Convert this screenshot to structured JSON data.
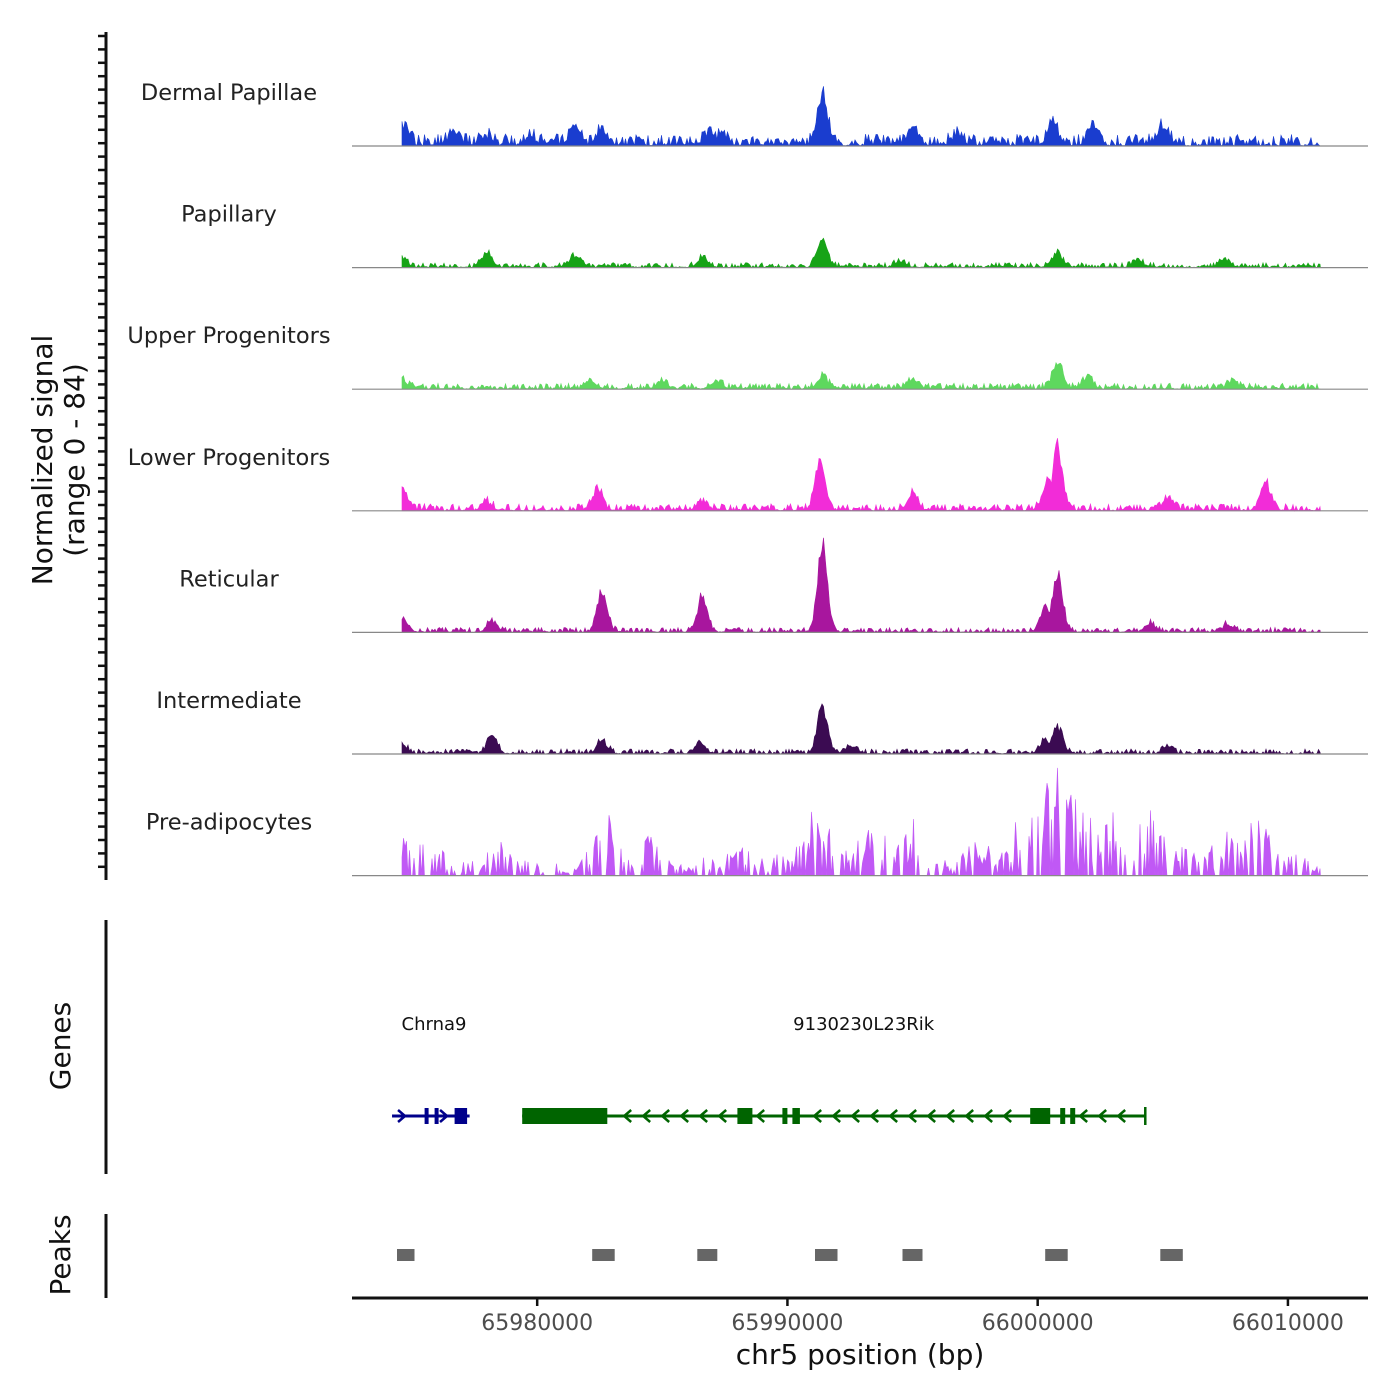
{
  "chart_data": {
    "type": "area",
    "region": "chr5",
    "xlim": [
      65972600,
      66013200
    ],
    "ylim": [
      0,
      84
    ],
    "ylabel_line1": "Normalized signal",
    "ylabel_line2": "(range 0 - 84)",
    "xlabel": "chr5 position (bp)",
    "x_ticks": [
      65980000,
      65990000,
      66000000,
      66010000
    ],
    "x_tick_labels": [
      "65980000",
      "65990000",
      "66000000",
      "66010000"
    ],
    "colors": {
      "axis": "#111111",
      "baseline": "#888888",
      "gene_plus": "#00008b",
      "gene_minus": "#006400",
      "peak": "#666666",
      "tick_label": "#4d4d4d"
    },
    "signal_start": 65974600,
    "signal_end": 66011300,
    "tracks": [
      {
        "name": "Dermal Papillae",
        "color": "#1a3dcf",
        "baseline": 12,
        "peaks": [
          [
            65974700,
            18
          ],
          [
            65976700,
            12
          ],
          [
            65978000,
            8
          ],
          [
            65979700,
            10
          ],
          [
            65981500,
            22
          ],
          [
            65982600,
            15
          ],
          [
            65986800,
            10
          ],
          [
            65987400,
            12
          ],
          [
            65991400,
            54
          ],
          [
            65995000,
            20
          ],
          [
            65996800,
            10
          ],
          [
            66000600,
            25
          ],
          [
            66002200,
            20
          ],
          [
            66005000,
            22
          ]
        ]
      },
      {
        "name": "Papillary",
        "color": "#17a317",
        "baseline": 5,
        "peaks": [
          [
            65974600,
            10
          ],
          [
            65978000,
            14
          ],
          [
            65981500,
            12
          ],
          [
            65986600,
            10
          ],
          [
            65991400,
            30
          ],
          [
            65994500,
            7
          ],
          [
            66000800,
            14
          ],
          [
            66004000,
            9
          ],
          [
            66007500,
            8
          ]
        ]
      },
      {
        "name": "Upper Progenitors",
        "color": "#5ed85e",
        "baseline": 6,
        "peaks": [
          [
            65974600,
            10
          ],
          [
            65982200,
            7
          ],
          [
            65985000,
            9
          ],
          [
            65987200,
            8
          ],
          [
            65991400,
            14
          ],
          [
            65995000,
            9
          ],
          [
            66000800,
            30
          ],
          [
            66002000,
            12
          ],
          [
            66007800,
            8
          ]
        ]
      },
      {
        "name": "Lower Progenitors",
        "color": "#f22cd8",
        "baseline": 7,
        "peaks": [
          [
            65974600,
            24
          ],
          [
            65978000,
            8
          ],
          [
            65982400,
            22
          ],
          [
            65986600,
            10
          ],
          [
            65991300,
            52
          ],
          [
            65995000,
            18
          ],
          [
            66000800,
            68
          ],
          [
            66000400,
            30
          ],
          [
            66005200,
            14
          ],
          [
            66009100,
            30
          ]
        ]
      },
      {
        "name": "Reticular",
        "color": "#a8169e",
        "baseline": 5,
        "peaks": [
          [
            65974600,
            16
          ],
          [
            65978200,
            12
          ],
          [
            65982600,
            46
          ],
          [
            65986600,
            40
          ],
          [
            65991400,
            96
          ],
          [
            66000800,
            66
          ],
          [
            66000300,
            28
          ],
          [
            66004500,
            9
          ],
          [
            66007600,
            8
          ]
        ]
      },
      {
        "name": "Intermediate",
        "color": "#3b0b52",
        "baseline": 5,
        "peaks": [
          [
            65974600,
            10
          ],
          [
            65978200,
            20
          ],
          [
            65982600,
            14
          ],
          [
            65986500,
            12
          ],
          [
            65991400,
            52
          ],
          [
            65992600,
            8
          ],
          [
            66000800,
            30
          ],
          [
            66000300,
            16
          ],
          [
            66005200,
            8
          ]
        ]
      },
      {
        "name": "Pre-adipocytes",
        "color": "#c058f5",
        "baseline": 14,
        "peaks": [
          [
            65974500,
            45
          ],
          [
            65975500,
            35
          ],
          [
            65978800,
            28
          ],
          [
            65982800,
            60
          ],
          [
            65984500,
            40
          ],
          [
            65986800,
            18
          ],
          [
            65988200,
            28
          ],
          [
            65990500,
            22
          ],
          [
            65991400,
            82
          ],
          [
            65993500,
            50
          ],
          [
            65995000,
            46
          ],
          [
            65997500,
            30
          ],
          [
            65999500,
            65
          ],
          [
            66000800,
            112
          ],
          [
            66001600,
            85
          ],
          [
            66003000,
            55
          ],
          [
            66004600,
            55
          ],
          [
            66006200,
            42
          ],
          [
            66007800,
            60
          ],
          [
            66008800,
            58
          ],
          [
            66010200,
            28
          ]
        ]
      }
    ],
    "genes_label": "Genes",
    "genes": [
      {
        "name": "Chrna9",
        "strand": "+",
        "start": 65974200,
        "end": 65977300,
        "exons": [
          [
            65975500,
            65975600
          ],
          [
            65975900,
            65976000
          ],
          [
            65976700,
            65977200
          ]
        ]
      },
      {
        "name": "9130230L23Rik",
        "strand": "-",
        "start": 65979400,
        "end": 66004300,
        "exons": [
          [
            65979400,
            65982800
          ],
          [
            65988000,
            65988600
          ],
          [
            65989800,
            65990000
          ],
          [
            65990200,
            65990500
          ],
          [
            65999700,
            66000500
          ],
          [
            66000900,
            66001100
          ],
          [
            66001300,
            66001500
          ]
        ]
      }
    ],
    "peaks_label": "Peaks",
    "peak_regions": [
      [
        65974400,
        65975100
      ],
      [
        65982200,
        65983100
      ],
      [
        65986400,
        65987200
      ],
      [
        65991100,
        65992000
      ],
      [
        65994600,
        65995400
      ],
      [
        66000300,
        66001200
      ],
      [
        66004900,
        66005800
      ]
    ]
  }
}
